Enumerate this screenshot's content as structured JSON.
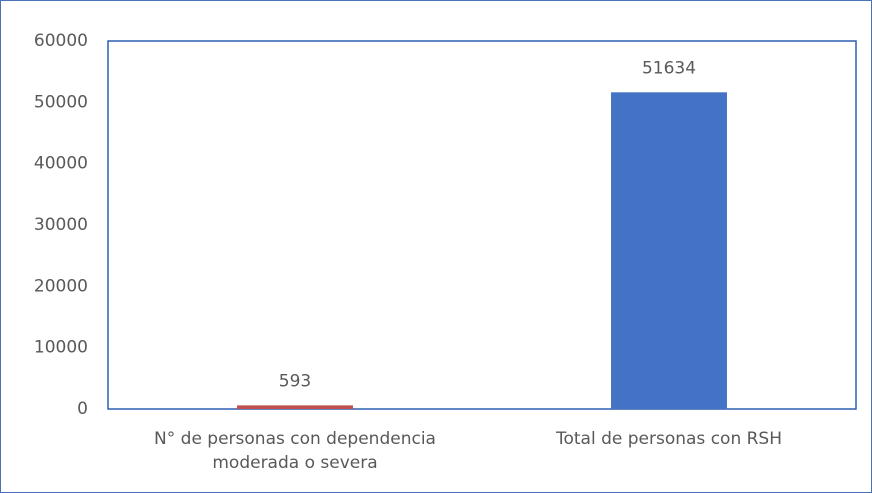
{
  "chart_data": {
    "type": "bar",
    "categories": [
      "N° de personas con dependencia moderada o severa",
      "Total de personas con RSH"
    ],
    "values": [
      593,
      51634
    ],
    "colors": [
      "#c0504d",
      "#4472c4"
    ],
    "ylim": [
      0,
      60000
    ],
    "yticks": [
      0,
      10000,
      20000,
      30000,
      40000,
      50000,
      60000
    ],
    "grid": false
  }
}
